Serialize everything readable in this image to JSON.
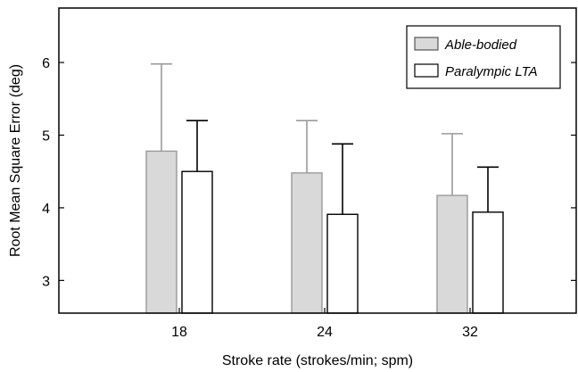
{
  "chart_data": {
    "type": "bar",
    "xlabel": "Stroke rate (strokes/min; spm)",
    "ylabel": "Root Mean Square Error (deg)",
    "categories": [
      "18",
      "24",
      "32"
    ],
    "ylim": [
      2.55,
      6.75
    ],
    "yticks": [
      3,
      4,
      5,
      6
    ],
    "legend_position": "top-right",
    "grid": false,
    "series": [
      {
        "name": "Able-bodied",
        "values": [
          4.78,
          4.48,
          4.17
        ],
        "error": [
          1.2,
          0.72,
          0.85
        ],
        "fill": "#d9d9d9",
        "stroke": "#9a9a9a"
      },
      {
        "name": "Paralympic LTA",
        "values": [
          4.5,
          3.91,
          3.94
        ],
        "error": [
          0.7,
          0.97,
          0.62
        ],
        "fill": "#ffffff",
        "stroke": "#000000"
      }
    ]
  }
}
